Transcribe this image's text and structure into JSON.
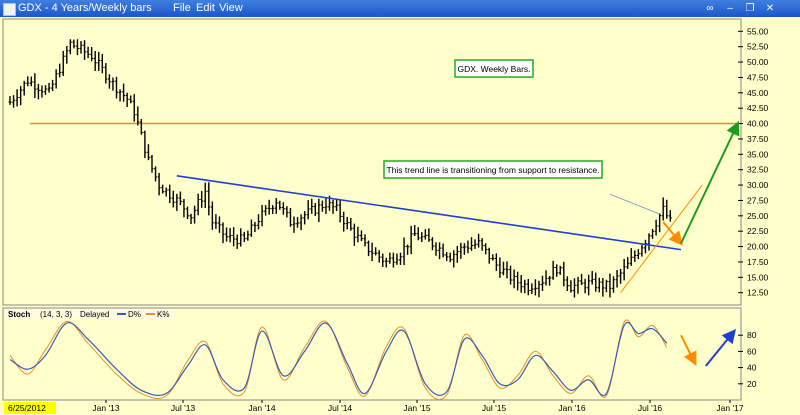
{
  "window": {
    "title": "GDX - 4 Years/Weekly bars",
    "menu": [
      "File",
      "Edit",
      "View"
    ]
  },
  "chart_data": [
    {
      "type": "ohlc",
      "ylim": [
        10.5,
        57
      ],
      "y_ticks": [
        12.5,
        15.0,
        17.5,
        20.0,
        22.5,
        25.0,
        27.5,
        30.0,
        32.5,
        35.0,
        37.5,
        40.0,
        42.5,
        45.0,
        47.5,
        50.0,
        52.5,
        55.0
      ],
      "y_tick_labels": [
        "12.50",
        "15.00",
        "17.50",
        "20.00",
        "22.50",
        "25.00",
        "27.50",
        "30.00",
        "32.50",
        "35.00",
        "37.50",
        "40.00",
        "42.50",
        "45.00",
        "47.50",
        "50.00",
        "52.50",
        "55.00"
      ],
      "x_tick_labels": [
        "Jan '13",
        "Jul '13",
        "Jan '14",
        "Jul '14",
        "Jan '15",
        "Jul '15",
        "Jan '16",
        "Jul '16",
        "Jan '17"
      ],
      "start_label": "6/25/2012",
      "annotations": [
        "GDX. Weekly Bars.",
        "This trend line is transitioning from support to resistance."
      ],
      "price_path": [
        [
          0,
          43.5
        ],
        [
          5,
          47
        ],
        [
          11,
          45
        ],
        [
          17,
          53
        ],
        [
          23,
          51
        ],
        [
          29,
          46.5
        ],
        [
          33,
          44
        ],
        [
          35,
          42
        ],
        [
          37,
          38
        ],
        [
          39,
          34
        ],
        [
          42,
          30
        ],
        [
          45,
          28.5
        ],
        [
          48,
          27
        ],
        [
          51,
          25
        ],
        [
          55,
          29
        ],
        [
          57,
          24
        ],
        [
          61,
          21.5
        ],
        [
          66,
          21
        ],
        [
          70,
          24.5
        ],
        [
          75,
          27.5
        ],
        [
          79,
          24
        ],
        [
          84,
          25.5
        ],
        [
          89,
          27
        ],
        [
          92,
          26
        ],
        [
          95,
          23.5
        ],
        [
          100,
          20
        ],
        [
          106,
          17.5
        ],
        [
          110,
          19
        ],
        [
          114,
          22
        ],
        [
          119,
          20.5
        ],
        [
          124,
          18.5
        ],
        [
          128,
          20
        ],
        [
          132,
          20.5
        ],
        [
          137,
          17
        ],
        [
          142,
          14.5
        ],
        [
          146,
          13.5
        ],
        [
          150,
          14.5
        ],
        [
          154,
          16.5
        ],
        [
          158,
          13.5
        ],
        [
          163,
          14
        ],
        [
          169,
          13.5
        ],
        [
          174,
          17
        ],
        [
          179,
          21
        ],
        [
          182,
          24
        ],
        [
          184,
          26
        ],
        [
          186,
          24
        ]
      ],
      "horizontal_line": {
        "y": 40.0
      },
      "trend_line": {
        "x": [
          47,
          189
        ],
        "y": [
          31.5,
          19.5
        ]
      },
      "projection_arrows": [
        {
          "x": [
            184,
            189
          ],
          "y": [
            24,
            20.5
          ]
        },
        {
          "x": [
            189,
            205
          ],
          "y": [
            20.5,
            40
          ]
        }
      ],
      "channel_line": {
        "x": [
          172,
          195
        ],
        "y": [
          12.5,
          30
        ]
      },
      "callout_pointer": {
        "x": [
          169,
          183
        ],
        "y": [
          28.5,
          25.3
        ]
      }
    },
    {
      "type": "line",
      "indicator": "Stoch",
      "legend": [
        "Stoch",
        "(14, 3, 3)",
        "Delayed",
        "D%",
        "K%"
      ],
      "ylim": [
        0,
        100
      ],
      "y_ticks": [
        20,
        40,
        60,
        80
      ],
      "series": [
        {
          "name": "D%",
          "color": "#3a5bb8",
          "values": [
            [
              0,
              50
            ],
            [
              5,
              38
            ],
            [
              10,
              55
            ],
            [
              16,
              95
            ],
            [
              22,
              75
            ],
            [
              30,
              38
            ],
            [
              37,
              12
            ],
            [
              44,
              8
            ],
            [
              50,
              42
            ],
            [
              55,
              68
            ],
            [
              60,
              25
            ],
            [
              66,
              15
            ],
            [
              71,
              85
            ],
            [
              77,
              30
            ],
            [
              83,
              60
            ],
            [
              89,
              95
            ],
            [
              95,
              45
            ],
            [
              100,
              8
            ],
            [
              106,
              60
            ],
            [
              111,
              85
            ],
            [
              117,
              20
            ],
            [
              123,
              10
            ],
            [
              128,
              75
            ],
            [
              133,
              55
            ],
            [
              138,
              20
            ],
            [
              143,
              25
            ],
            [
              148,
              55
            ],
            [
              153,
              35
            ],
            [
              158,
              12
            ],
            [
              163,
              25
            ],
            [
              168,
              8
            ],
            [
              173,
              92
            ],
            [
              177,
              82
            ],
            [
              181,
              88
            ],
            [
              185,
              70
            ]
          ]
        },
        {
          "name": "K%",
          "color": "#e8902a",
          "values": [
            [
              0,
              55
            ],
            [
              5,
              32
            ],
            [
              10,
              62
            ],
            [
              16,
              97
            ],
            [
              22,
              70
            ],
            [
              30,
              32
            ],
            [
              37,
              8
            ],
            [
              44,
              5
            ],
            [
              50,
              48
            ],
            [
              55,
              72
            ],
            [
              60,
              20
            ],
            [
              66,
              10
            ],
            [
              71,
              90
            ],
            [
              77,
              25
            ],
            [
              83,
              65
            ],
            [
              89,
              97
            ],
            [
              95,
              40
            ],
            [
              100,
              5
            ],
            [
              106,
              66
            ],
            [
              111,
              88
            ],
            [
              117,
              15
            ],
            [
              123,
              6
            ],
            [
              128,
              80
            ],
            [
              133,
              50
            ],
            [
              138,
              15
            ],
            [
              143,
              30
            ],
            [
              148,
              60
            ],
            [
              153,
              30
            ],
            [
              158,
              8
            ],
            [
              163,
              30
            ],
            [
              168,
              5
            ],
            [
              173,
              96
            ],
            [
              177,
              78
            ],
            [
              181,
              92
            ],
            [
              185,
              65
            ]
          ]
        }
      ],
      "projection_arrows": [
        {
          "x": [
            189,
            193
          ],
          "y": [
            80,
            45
          ]
        },
        {
          "x": [
            196,
            204
          ],
          "y": [
            42,
            85
          ]
        }
      ]
    }
  ],
  "colors": {
    "background": "#ffffcc",
    "bars": "#000000",
    "horizontal_line": "#ff8c00",
    "trend_line": "#1f3fd4",
    "channel_line": "#ff8c00",
    "arrow_down": "#ff8c00",
    "arrow_up_price": "#1f9a1f",
    "arrow_up_stoch": "#1f3fd4",
    "annotation_border": "#22aa22",
    "axis_frame": "#8a8a8a"
  }
}
